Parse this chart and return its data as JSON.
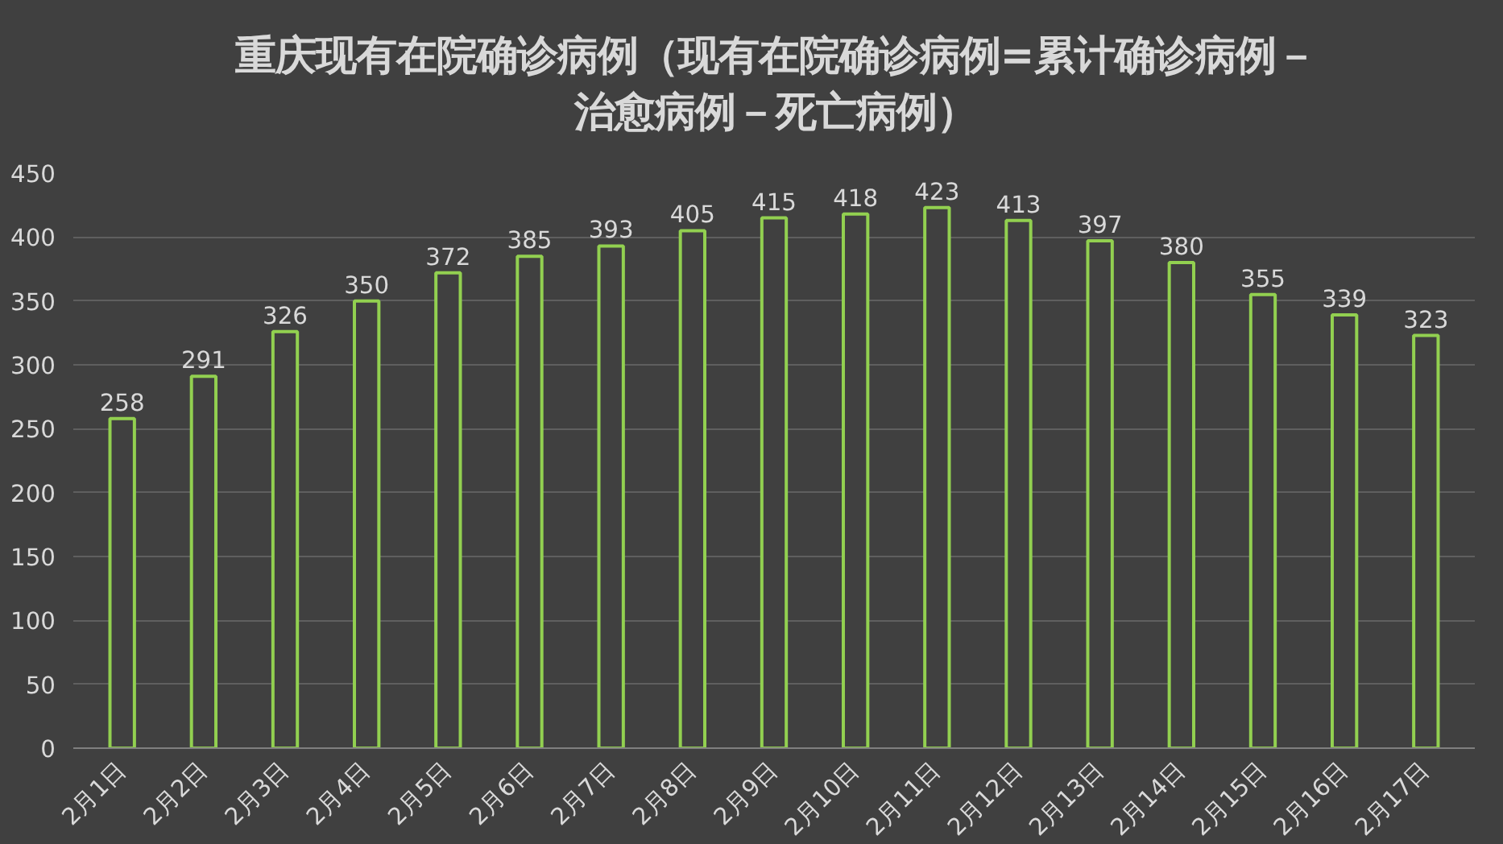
{
  "chart_data": {
    "type": "bar",
    "title": "重庆现有在院确诊病例（现有在院确诊病例=累计确诊病例－治愈病例－死亡病例）",
    "categories": [
      "2月1日",
      "2月2日",
      "2月3日",
      "2月4日",
      "2月5日",
      "2月6日",
      "2月7日",
      "2月8日",
      "2月9日",
      "2月10日",
      "2月11日",
      "2月12日",
      "2月13日",
      "2月14日",
      "2月15日",
      "2月16日",
      "2月17日"
    ],
    "values": [
      258,
      291,
      326,
      350,
      372,
      385,
      393,
      405,
      415,
      418,
      423,
      413,
      397,
      380,
      355,
      339,
      323
    ],
    "color": "#92d050",
    "ylim": [
      0,
      450
    ],
    "yticks": [
      0,
      50,
      100,
      150,
      200,
      250,
      300,
      350,
      400,
      450
    ],
    "grid": "y",
    "data_labels": true
  }
}
